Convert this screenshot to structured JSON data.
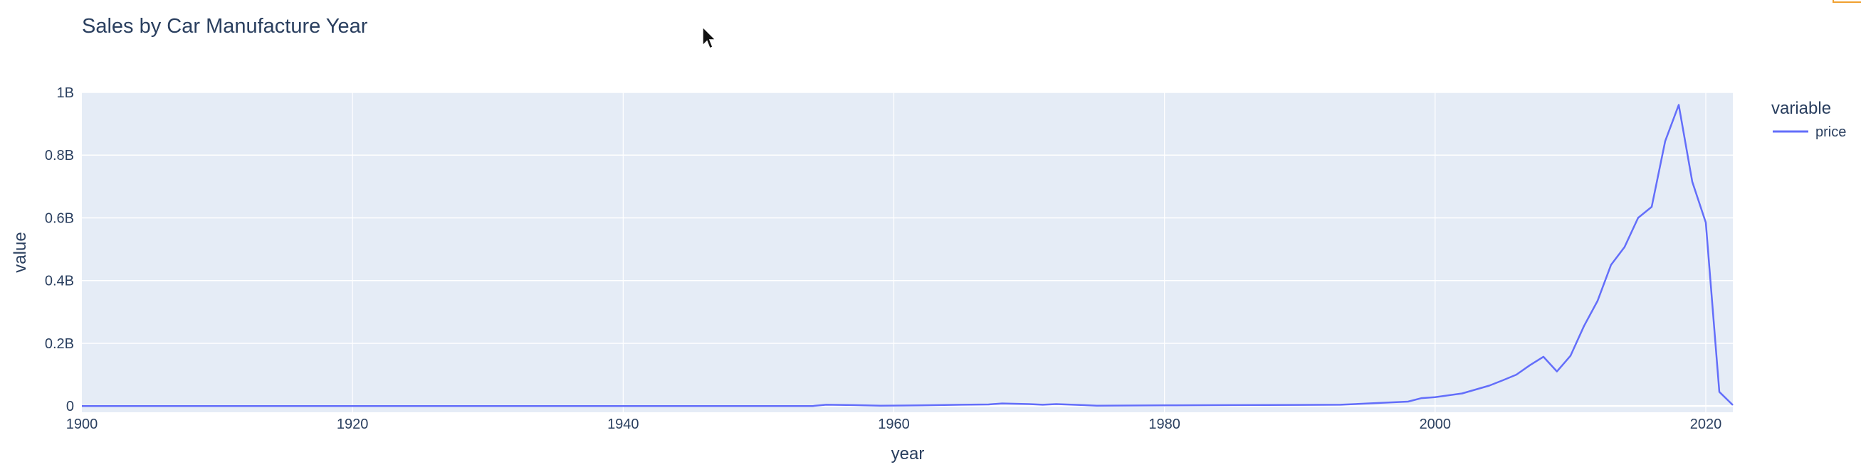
{
  "chart_data": {
    "type": "line",
    "title": "Sales by Car Manufacture Year",
    "xlabel": "year",
    "ylabel": "value",
    "xlim": [
      1900,
      2022
    ],
    "ylim": [
      -20000000,
      1000000000
    ],
    "grid": true,
    "legend_title": "variable",
    "legend_position": "top-right",
    "x_ticks": [
      1900,
      1920,
      1940,
      1960,
      1980,
      2000,
      2020
    ],
    "x_tick_labels": [
      "1900",
      "1920",
      "1940",
      "1960",
      "1980",
      "2000",
      "2020"
    ],
    "y_ticks": [
      0,
      200000000,
      400000000,
      600000000,
      800000000,
      1000000000
    ],
    "y_tick_labels": [
      "0",
      "0.2B",
      "0.4B",
      "0.6B",
      "0.8B",
      "1B"
    ],
    "series": [
      {
        "name": "price",
        "color": "#636efa",
        "x": [
          1900,
          1954,
          1955,
          1957,
          1959,
          1962,
          1965,
          1967,
          1968,
          1970,
          1971,
          1972,
          1974,
          1975,
          1980,
          1985,
          1990,
          1993,
          1996,
          1998,
          1999,
          2000,
          2002,
          2004,
          2005,
          2006,
          2007,
          2008,
          2009,
          2010,
          2011,
          2012,
          2013,
          2014,
          2015,
          2016,
          2017,
          2018,
          2019,
          2020,
          2021,
          2022
        ],
        "y": [
          0,
          0,
          4000000,
          3000000,
          1000000,
          2000000,
          4000000,
          5000000,
          8000000,
          6000000,
          4000000,
          6000000,
          3000000,
          1000000,
          2000000,
          3000000,
          3500000,
          4000000,
          10000000,
          14000000,
          25000000,
          28000000,
          40000000,
          65000000,
          82000000,
          100000000,
          130000000,
          157000000,
          110000000,
          160000000,
          255000000,
          335000000,
          450000000,
          507000000,
          600000000,
          635000000,
          845000000,
          960000000,
          715000000,
          585000000,
          45000000,
          3000000
        ]
      }
    ]
  }
}
